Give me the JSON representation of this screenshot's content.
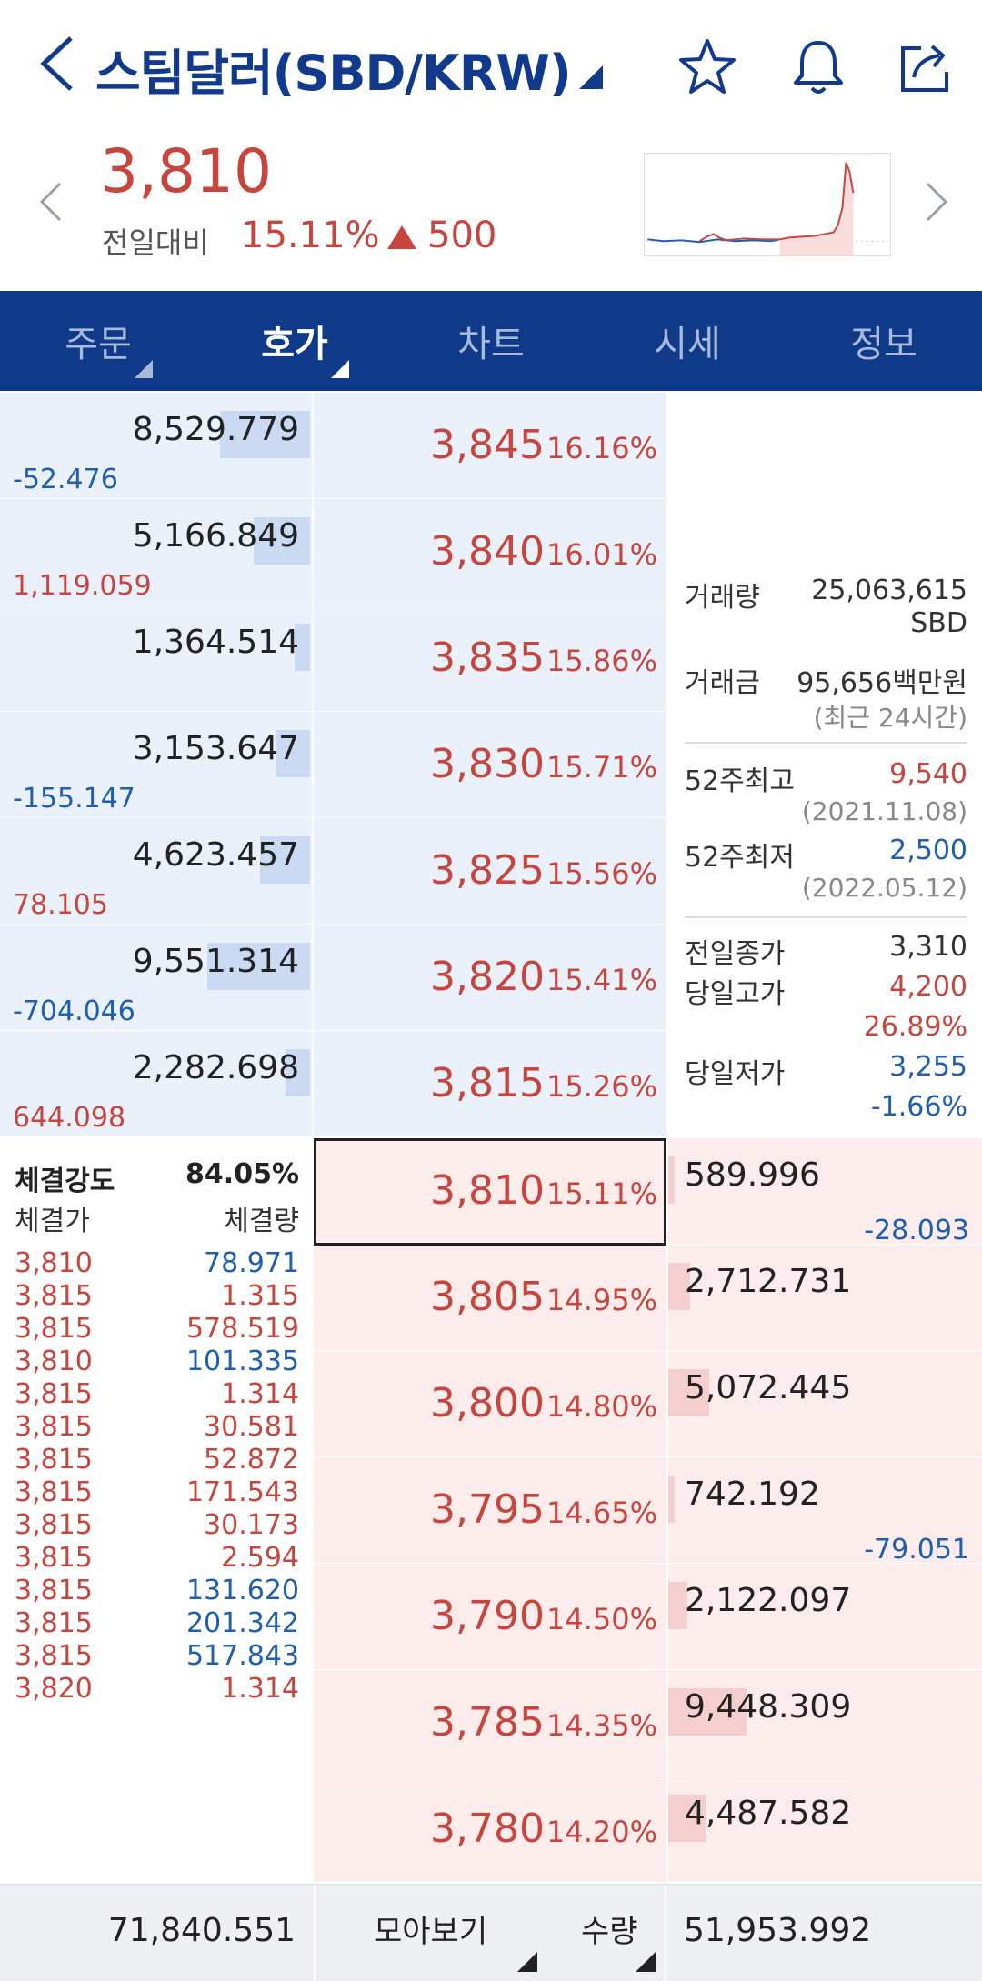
{
  "header": {
    "title": "스팀달러(SBD/KRW)",
    "icons": [
      "back-icon",
      "caret-icon",
      "star-icon",
      "bell-icon",
      "share-icon"
    ]
  },
  "summary": {
    "price": "3,810",
    "compare_label": "전일대비",
    "change_rate": "15.11%",
    "change_value": "500"
  },
  "tabs": [
    {
      "label": "주문",
      "active": false
    },
    {
      "label": "호가",
      "active": true
    },
    {
      "label": "차트",
      "active": false
    },
    {
      "label": "시세",
      "active": false
    },
    {
      "label": "정보",
      "active": false
    }
  ],
  "asks": [
    {
      "qty": "8,529.779",
      "chg": "-52.476",
      "price": "3,845",
      "rate": "16.16%",
      "bar": 0.29
    },
    {
      "qty": "5,166.849",
      "chg": "1,119.059",
      "price": "3,840",
      "rate": "16.01%",
      "bar": 0.18
    },
    {
      "qty": "1,364.514",
      "chg": "",
      "price": "3,835",
      "rate": "15.86%",
      "bar": 0.05
    },
    {
      "qty": "3,153.647",
      "chg": "-155.147",
      "price": "3,830",
      "rate": "15.71%",
      "bar": 0.11
    },
    {
      "qty": "4,623.457",
      "chg": "78.105",
      "price": "3,825",
      "rate": "15.56%",
      "bar": 0.16
    },
    {
      "qty": "9,551.314",
      "chg": "-704.046",
      "price": "3,820",
      "rate": "15.41%",
      "bar": 0.33
    },
    {
      "qty": "2,282.698",
      "chg": "644.098",
      "price": "3,815",
      "rate": "15.26%",
      "bar": 0.08
    }
  ],
  "bids": [
    {
      "qty": "589.996",
      "chg": "-28.093",
      "price": "3,810",
      "rate": "15.11%",
      "bar": 0.02
    },
    {
      "qty": "2,712.731",
      "chg": "",
      "price": "3,805",
      "rate": "14.95%",
      "bar": 0.07
    },
    {
      "qty": "5,072.445",
      "chg": "",
      "price": "3,800",
      "rate": "14.80%",
      "bar": 0.13
    },
    {
      "qty": "742.192",
      "chg": "-79.051",
      "price": "3,795",
      "rate": "14.65%",
      "bar": 0.02
    },
    {
      "qty": "2,122.097",
      "chg": "",
      "price": "3,790",
      "rate": "14.50%",
      "bar": 0.06
    },
    {
      "qty": "9,448.309",
      "chg": "",
      "price": "3,785",
      "rate": "14.35%",
      "bar": 0.25
    },
    {
      "qty": "4,487.582",
      "chg": "",
      "price": "3,780",
      "rate": "14.20%",
      "bar": 0.12
    }
  ],
  "info": {
    "volume_label": "거래량",
    "volume": "25,063,615",
    "volume_unit": "SBD",
    "amount_label": "거래금",
    "amount": "95,656백만원",
    "period": "(최근 24시간)",
    "high52_label": "52주최고",
    "high52": "9,540",
    "high52_date": "(2021.11.08)",
    "low52_label": "52주최저",
    "low52": "2,500",
    "low52_date": "(2022.05.12)",
    "prev_close_label": "전일종가",
    "prev_close": "3,310",
    "day_high_label": "당일고가",
    "day_high": "4,200",
    "day_high_rate": "26.89%",
    "day_low_label": "당일저가",
    "day_low": "3,255",
    "day_low_rate": "-1.66%"
  },
  "trades": {
    "strength_label": "체결강도",
    "strength": "84.05%",
    "price_header": "체결가",
    "qty_header": "체결량",
    "rows": [
      {
        "price": "3,810",
        "qty": "78.971",
        "side": "sell"
      },
      {
        "price": "3,815",
        "qty": "1.315",
        "side": "buy"
      },
      {
        "price": "3,815",
        "qty": "578.519",
        "side": "buy"
      },
      {
        "price": "3,810",
        "qty": "101.335",
        "side": "sell"
      },
      {
        "price": "3,815",
        "qty": "1.314",
        "side": "buy"
      },
      {
        "price": "3,815",
        "qty": "30.581",
        "side": "buy"
      },
      {
        "price": "3,815",
        "qty": "52.872",
        "side": "buy"
      },
      {
        "price": "3,815",
        "qty": "171.543",
        "side": "buy"
      },
      {
        "price": "3,815",
        "qty": "30.173",
        "side": "buy"
      },
      {
        "price": "3,815",
        "qty": "2.594",
        "side": "buy"
      },
      {
        "price": "3,815",
        "qty": "131.620",
        "side": "sell"
      },
      {
        "price": "3,815",
        "qty": "201.342",
        "side": "sell"
      },
      {
        "price": "3,815",
        "qty": "517.843",
        "side": "sell"
      },
      {
        "price": "3,820",
        "qty": "1.314",
        "side": "buy"
      }
    ]
  },
  "bottom": {
    "total_ask": "71,840.551",
    "group_label": "모아보기",
    "unit_label": "수량",
    "total_bid": "51,953.992"
  },
  "colors": {
    "up": "#c8453d",
    "down": "#1f5fb0",
    "brand": "#0f3a8a"
  }
}
